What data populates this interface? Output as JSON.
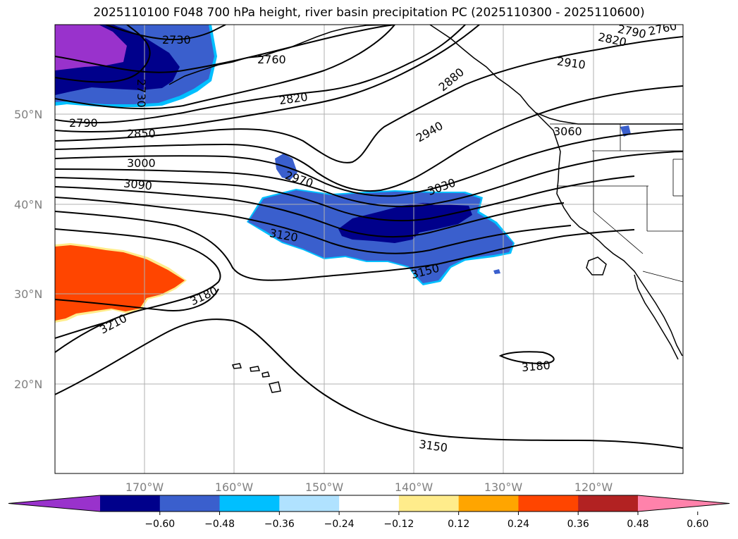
{
  "title": "2025110100 F048 700 hPa height, river basin precipitation PC (2025110300 - 2025110600)",
  "lat_labels": [
    "50°N",
    "40°N",
    "30°N",
    "20°N"
  ],
  "lon_labels": [
    "170°W",
    "160°W",
    "150°W",
    "140°W",
    "130°W",
    "120°W"
  ],
  "contour_labels": [
    "2730",
    "2760",
    "2730",
    "2790",
    "2850",
    "2820",
    "2880",
    "2910",
    "2820",
    "2790",
    "2760",
    "2940",
    "3060",
    "3000",
    "3090",
    "2970",
    "3030",
    "3120",
    "3150",
    "3180",
    "3210",
    "3180",
    "3150"
  ],
  "colorbar": {
    "colors": [
      "#9932cc",
      "#00008b",
      "#3a5fcd",
      "#00bfff",
      "#b0e2ff",
      "#ffffff",
      "#ffec8b",
      "#ffa500",
      "#ff4500",
      "#b22222",
      "#ff82ab"
    ],
    "ticks": [
      "−0.60",
      "−0.48",
      "−0.36",
      "−0.24",
      "−0.12",
      "0.12",
      "0.24",
      "0.36",
      "0.48",
      "0.60"
    ]
  }
}
